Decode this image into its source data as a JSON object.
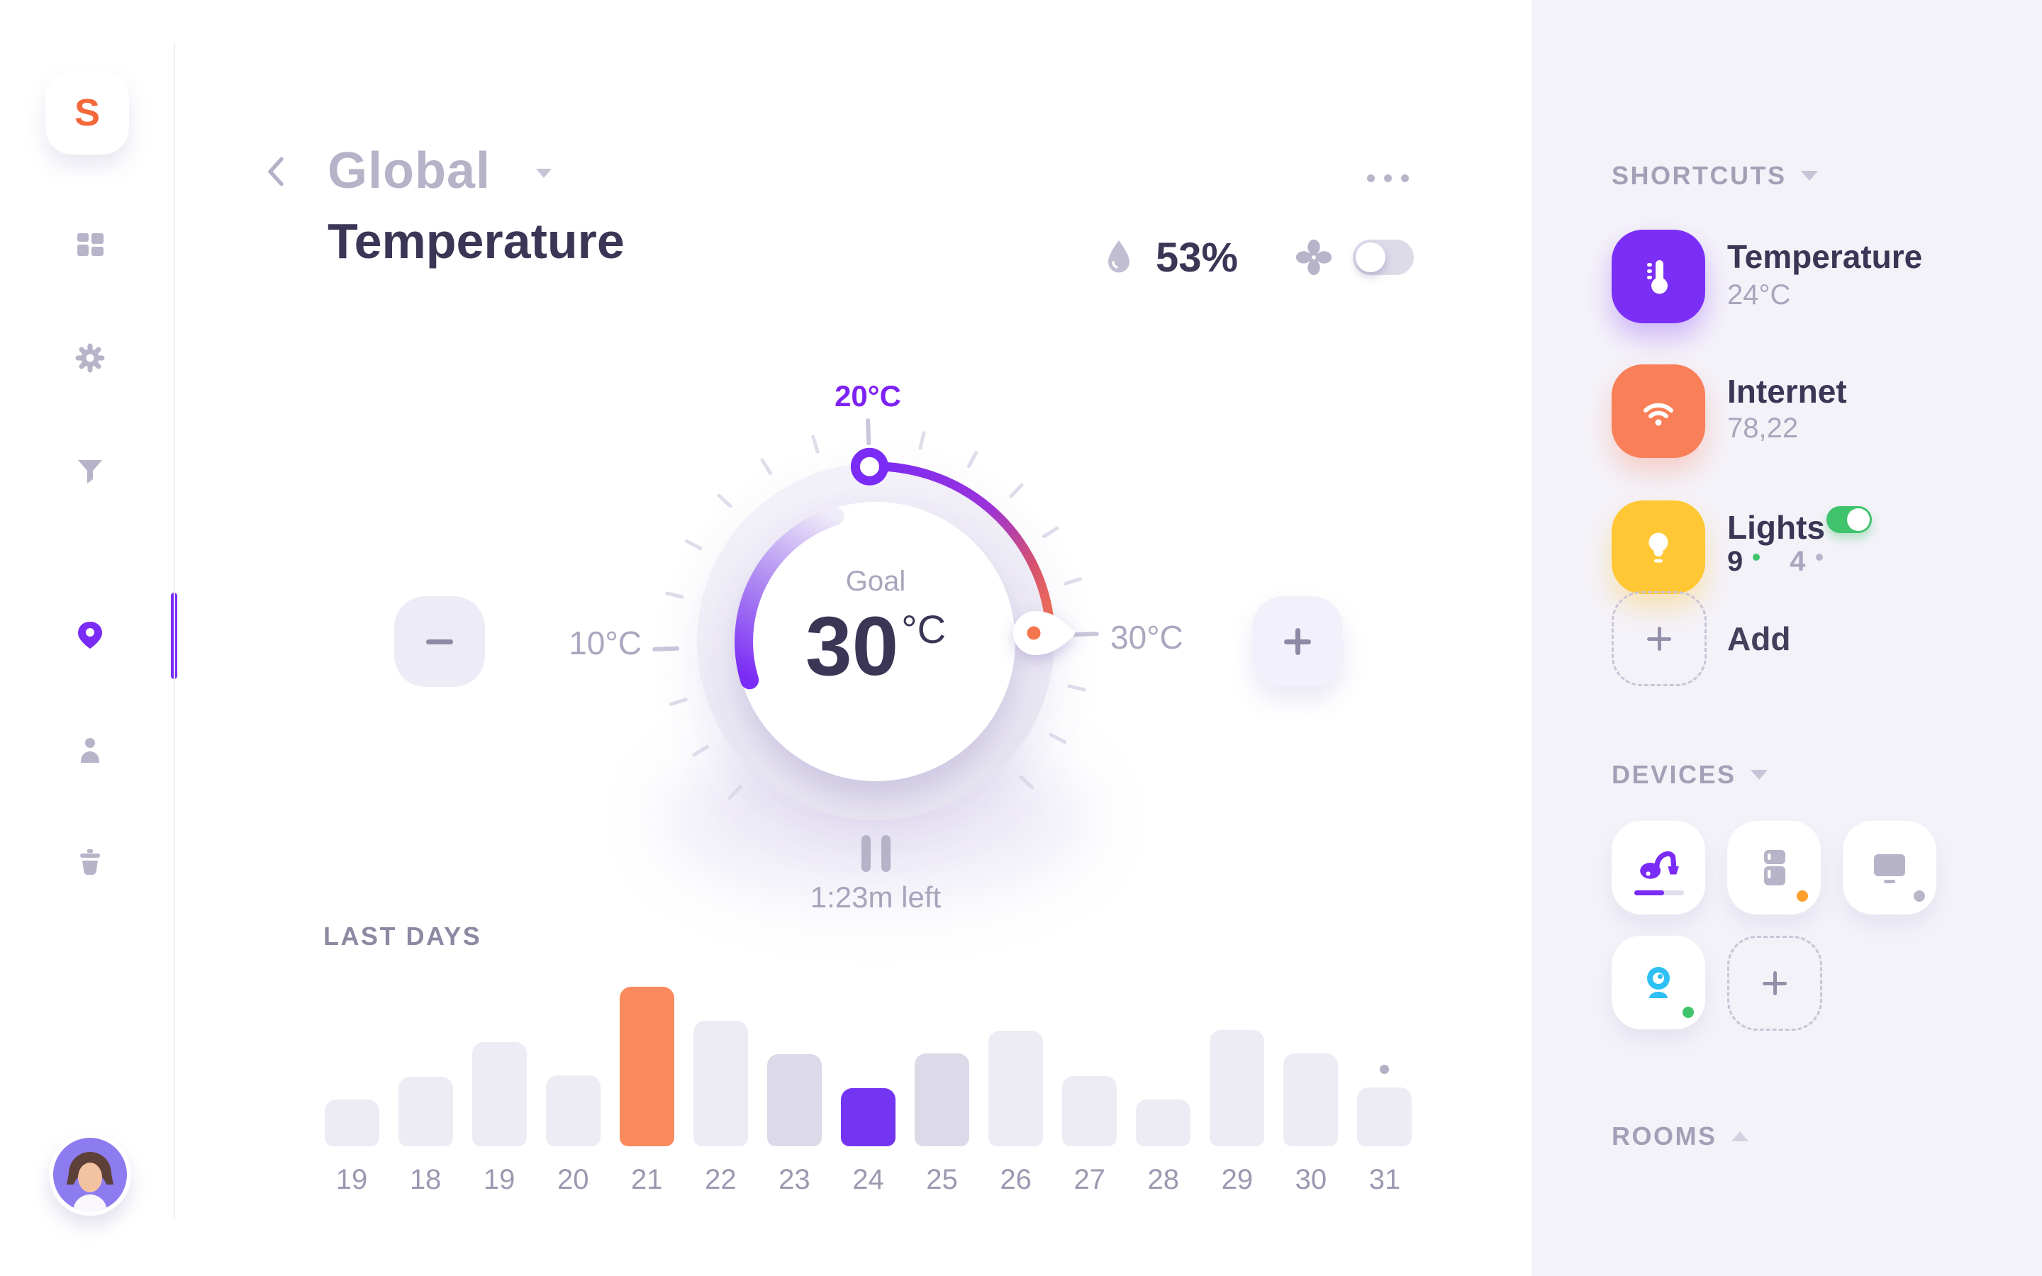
{
  "sidebar": {
    "logo": "S"
  },
  "header": {
    "breadcrumb": "Global",
    "title": "Temperature",
    "humidity": "53%"
  },
  "dial": {
    "top_label": "20°C",
    "min_label": "10°C",
    "max_label": "30°C",
    "goal_label": "Goal",
    "goal_value": "30",
    "goal_unit": "°C",
    "remaining": "1:23m left"
  },
  "chart_data": {
    "type": "bar",
    "title": "LAST DAYS",
    "categories": [
      "19",
      "18",
      "19",
      "20",
      "21",
      "22",
      "23",
      "24",
      "25",
      "26",
      "27",
      "28",
      "29",
      "30",
      "31"
    ],
    "values": [
      66,
      98,
      147,
      100,
      225,
      177,
      130,
      82,
      131,
      163,
      99,
      66,
      164,
      131,
      83
    ],
    "values_unit": "bar-height-px",
    "styles": [
      "default",
      "default",
      "default",
      "default",
      "orange",
      "default",
      "muted",
      "purple",
      "muted",
      "default",
      "default",
      "default",
      "default",
      "default",
      "default"
    ],
    "palette": {
      "default": "#edebf4",
      "muted": "#dcd9e9",
      "orange": "#fb8a5e",
      "purple": "#7435f2"
    },
    "annotations": {
      "dot_above_category_index": 14
    },
    "xlabel": "",
    "ylabel": "",
    "grid": false,
    "legend": false
  },
  "shortcuts": {
    "title": "SHORTCUTS",
    "items": [
      {
        "label": "Temperature",
        "value": "24°C"
      },
      {
        "label": "Internet",
        "value": "78,22"
      },
      {
        "label": "Lights",
        "toggle_state": "on",
        "count_active": "9",
        "count_inactive": "4"
      }
    ],
    "add_label": "Add"
  },
  "devices": {
    "title": "DEVICES"
  },
  "rooms": {
    "title": "ROOMS"
  },
  "colors": {
    "accent_purple": "#7a2bf5",
    "accent_orange": "#f87f58",
    "accent_yellow": "#ffc733",
    "accent_green": "#3fc36c",
    "accent_cyan": "#2ec0f4",
    "text_dark": "#3b3655",
    "text_gray": "#a9a5bc"
  }
}
